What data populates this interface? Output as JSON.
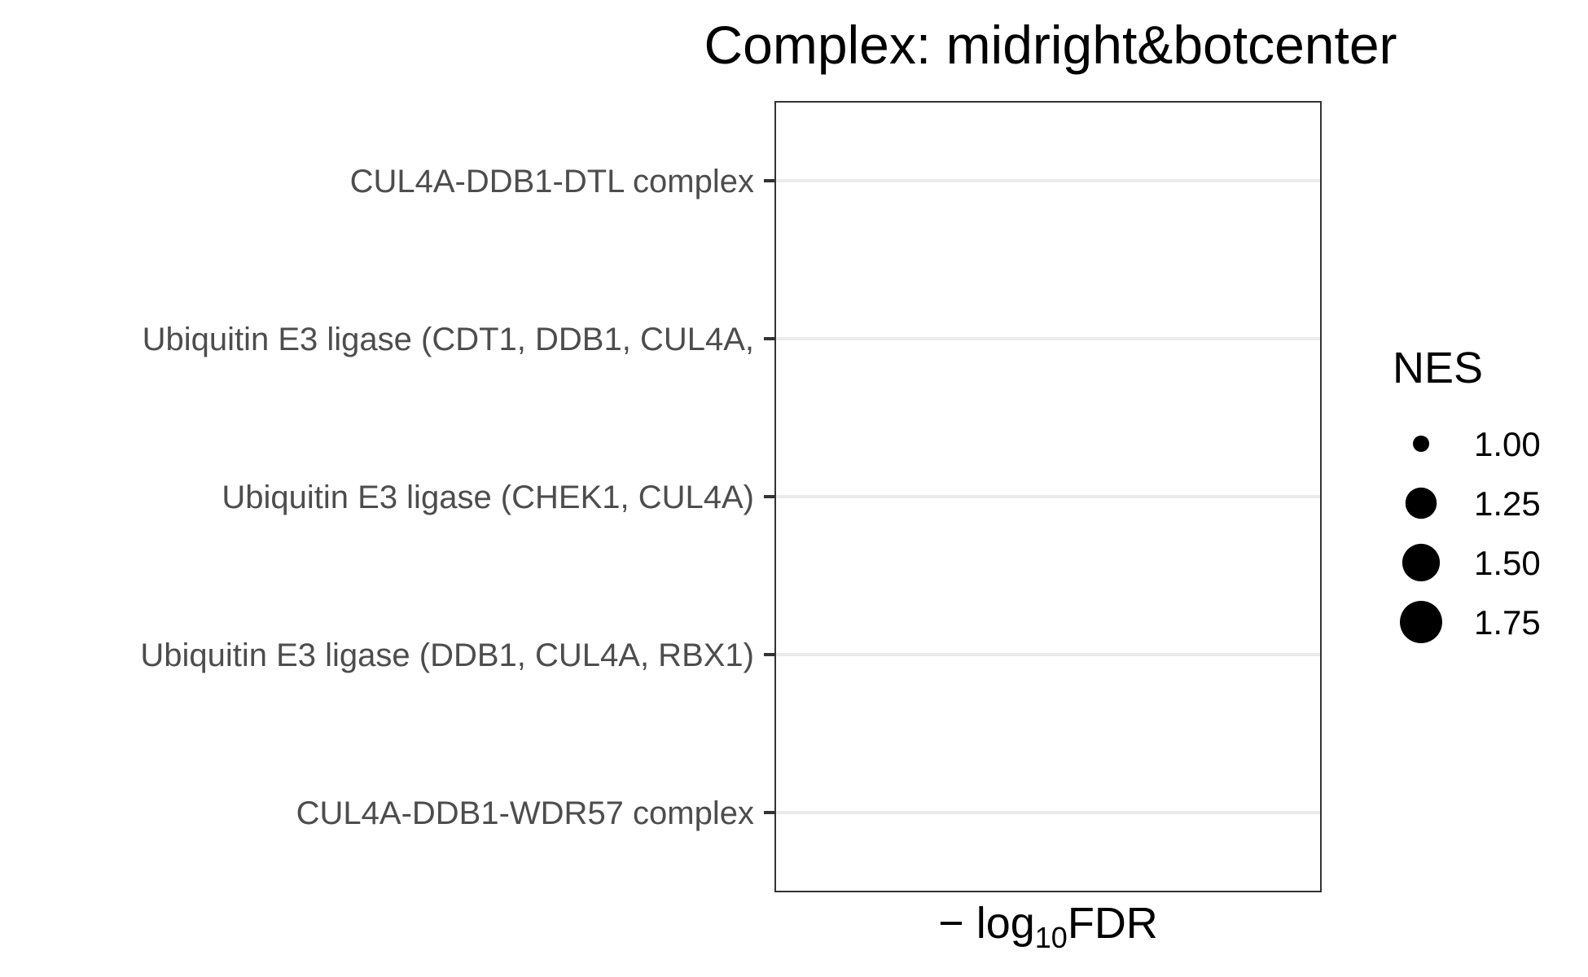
{
  "chart_data": {
    "type": "scatter",
    "title": "Complex: midright&botcenter",
    "xlabel": {
      "prefix": "− log",
      "subscript": "10",
      "suffix": "FDR"
    },
    "ylabel": "",
    "categories": [
      "CUL4A-DDB1-DTL complex",
      "Ubiquitin E3 ligase (CDT1, DDB1, CUL4A, ",
      "Ubiquitin E3 ligase (CHEK1, CUL4A)",
      "Ubiquitin E3 ligase (DDB1, CUL4A, RBX1)",
      "CUL4A-DDB1-WDR57 complex"
    ],
    "points": [],
    "grid": {
      "major_y": true,
      "major_x": false
    },
    "legend": {
      "title": "NES",
      "position": "right",
      "entries": [
        {
          "label": "1.00",
          "value": 1.0
        },
        {
          "label": "1.25",
          "value": 1.25
        },
        {
          "label": "1.50",
          "value": 1.5
        },
        {
          "label": "1.75",
          "value": 1.75
        }
      ]
    },
    "colors": {
      "gridline": "#ebebeb",
      "panel_border": "#333333",
      "tick": "#333333",
      "point": "#000000"
    }
  }
}
